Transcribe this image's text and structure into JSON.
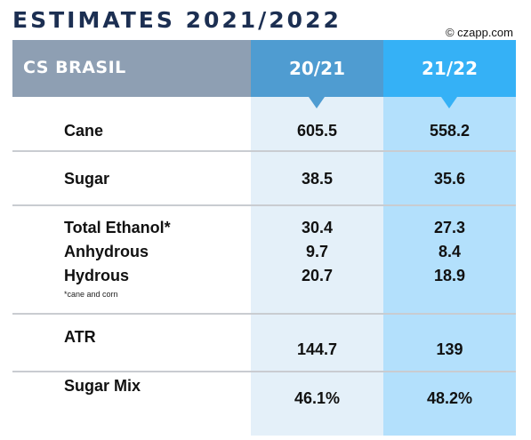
{
  "title": "ESTIMATES 2021/2022",
  "credit": "© czapp.com",
  "header": {
    "region": "CS BRASIL",
    "col1": "20/21",
    "col2": "21/22"
  },
  "rows": [
    {
      "label": "Cane",
      "v1": "605.5",
      "v2": "558.2"
    },
    {
      "label": "Sugar",
      "v1": "38.5",
      "v2": "35.6"
    },
    {
      "label": "Total Ethanol*",
      "v1": "30.4",
      "v2": "27.3"
    },
    {
      "label": "Anhydrous",
      "v1": "9.7",
      "v2": "8.4"
    },
    {
      "label": "Hydrous",
      "v1": "20.7",
      "v2": "18.9"
    },
    {
      "label": "ATR",
      "v1": "144.7",
      "v2": "139"
    },
    {
      "label": "Sugar Mix",
      "v1": "46.1%",
      "v2": "48.2%"
    }
  ],
  "footnote": "*cane and corn",
  "colors": {
    "title": "#1c2f52",
    "header_left": "#8e9fb3",
    "header_col1": "#4f9cd1",
    "header_col2": "#35b1f6",
    "col1_bg": "#e4f0f9",
    "col2_bg": "#b3e0fc"
  }
}
